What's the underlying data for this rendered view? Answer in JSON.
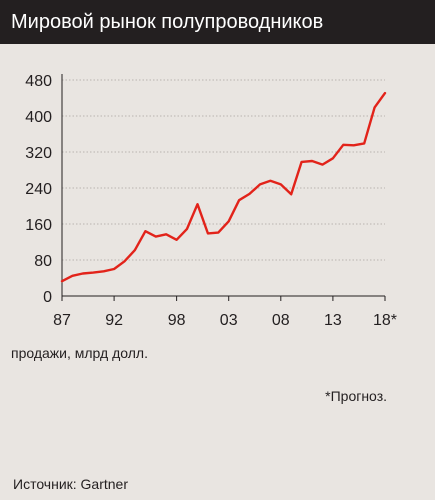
{
  "header": {
    "title": "Мировой рынок полупроводников"
  },
  "chart_data": {
    "type": "line",
    "ylabel": "продажи, млрд долл.",
    "ylim": [
      0,
      480
    ],
    "yticks": [
      0,
      80,
      160,
      240,
      320,
      400,
      480
    ],
    "xlim": [
      1987,
      2018
    ],
    "xticks": [
      {
        "value": 1987,
        "label": "87"
      },
      {
        "value": 1992,
        "label": "92"
      },
      {
        "value": 1998,
        "label": "98"
      },
      {
        "value": 2003,
        "label": "03"
      },
      {
        "value": 2008,
        "label": "08"
      },
      {
        "value": 2013,
        "label": "13"
      },
      {
        "value": 2018,
        "label": "18*"
      }
    ],
    "grid": true,
    "series": [
      {
        "color": "#e2231a",
        "x": [
          1987,
          1988,
          1989,
          1990,
          1991,
          1992,
          1993,
          1994,
          1995,
          1996,
          1997,
          1998,
          1999,
          2000,
          2001,
          2002,
          2003,
          2004,
          2005,
          2006,
          2007,
          2008,
          2009,
          2010,
          2011,
          2012,
          2013,
          2014,
          2015,
          2016,
          2017,
          2018
        ],
        "values": [
          33,
          45,
          50,
          52,
          55,
          60,
          77,
          102,
          144,
          132,
          137,
          125,
          149,
          204,
          139,
          141,
          166,
          213,
          227,
          248,
          256,
          248,
          226,
          298,
          300,
          292,
          306,
          336,
          335,
          339,
          419,
          451
        ]
      }
    ]
  },
  "note": "*Прогноз.",
  "source": "Источник: Gartner"
}
